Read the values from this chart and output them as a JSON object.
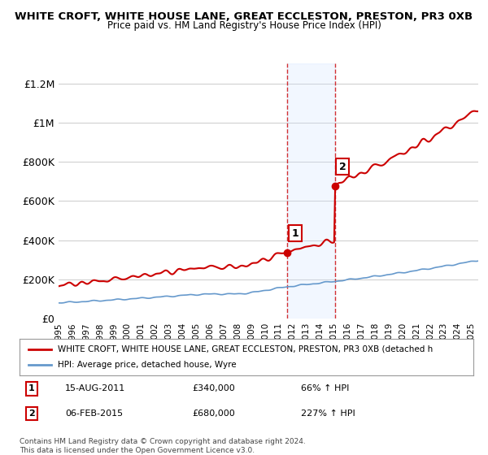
{
  "title1": "WHITE CROFT, WHITE HOUSE LANE, GREAT ECCLESTON, PRESTON, PR3 0XB",
  "title2": "Price paid vs. HM Land Registry's House Price Index (HPI)",
  "ylabel_ticks": [
    "£0",
    "£200K",
    "£400K",
    "£600K",
    "£800K",
    "£1M",
    "£1.2M"
  ],
  "ytick_values": [
    0,
    200000,
    400000,
    600000,
    800000,
    1000000,
    1200000
  ],
  "ylim": [
    0,
    1300000
  ],
  "xstart": 1995.0,
  "xend": 2025.5,
  "sale1_date": 2011.62,
  "sale1_price": 340000,
  "sale2_date": 2015.09,
  "sale2_price": 680000,
  "legend_line1": "WHITE CROFT, WHITE HOUSE LANE, GREAT ECCLESTON, PRESTON, PR3 0XB (detached h",
  "legend_line2": "HPI: Average price, detached house, Wyre",
  "annotation1_label": "1",
  "annotation1_date": "15-AUG-2011",
  "annotation1_price": "£340,000",
  "annotation1_hpi": "66% ↑ HPI",
  "annotation2_label": "2",
  "annotation2_date": "06-FEB-2015",
  "annotation2_price": "£680,000",
  "annotation2_hpi": "227% ↑ HPI",
  "footer1": "Contains HM Land Registry data © Crown copyright and database right 2024.",
  "footer2": "This data is licensed under the Open Government Licence v3.0.",
  "red_color": "#cc0000",
  "blue_color": "#6699cc",
  "shade_color": "#cce0ff",
  "background_color": "#ffffff"
}
